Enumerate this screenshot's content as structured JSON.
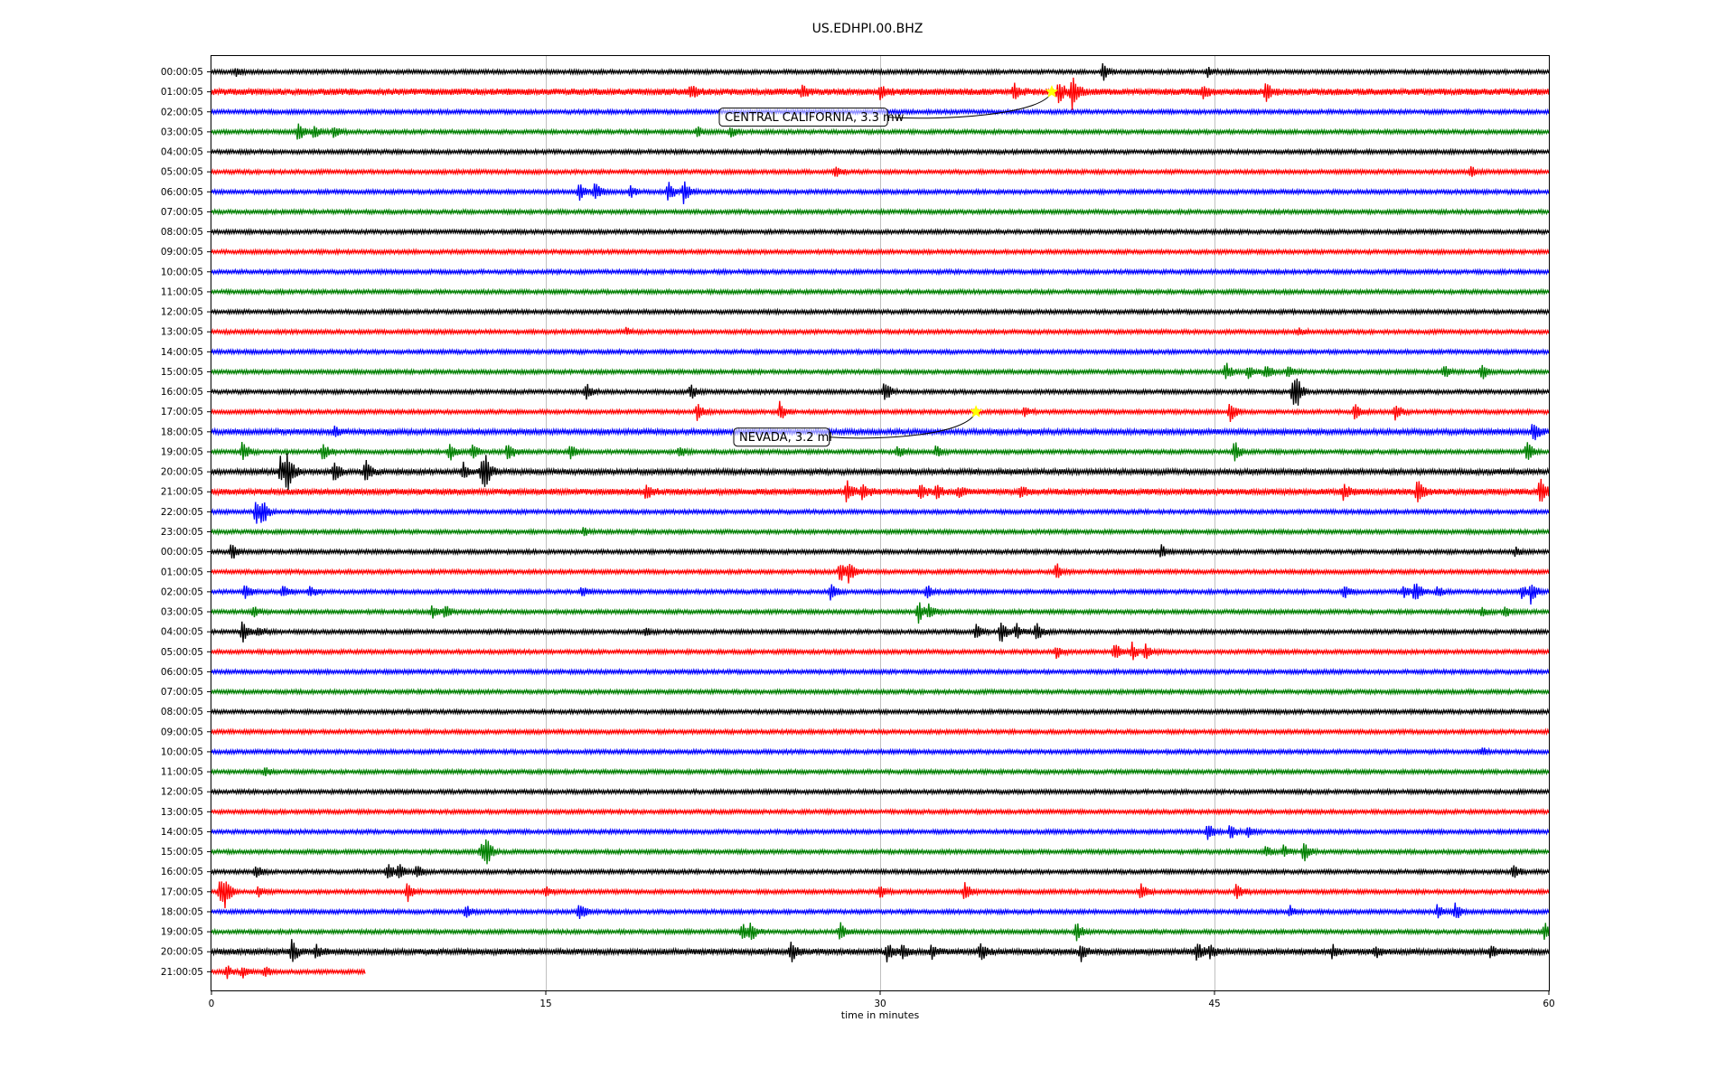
{
  "chart_data": {
    "type": "line",
    "title": "US.EDHPI.00.BHZ",
    "xlabel": "time in minutes",
    "ylabel": "",
    "xlim": [
      0,
      60
    ],
    "xticks": [
      "0",
      "15",
      "30",
      "45",
      "60"
    ],
    "xtick_values": [
      0,
      15,
      30,
      45,
      60
    ],
    "grid": "vertical",
    "colors": [
      "#000000",
      "#ff0000",
      "#0000ff",
      "#008000"
    ],
    "event_marker_color": "#ffff00",
    "traces": [
      {
        "label": "00:00:05",
        "end": 60,
        "events": [
          [
            1.1,
            0.6
          ],
          [
            40,
            1.4
          ],
          [
            44.7,
            0.8
          ]
        ]
      },
      {
        "label": "01:00:05",
        "end": 60,
        "noise": 1.6,
        "events": [
          [
            21.5,
            1.0
          ],
          [
            26.5,
            0.8
          ],
          [
            30,
            1.2
          ],
          [
            36,
            1.2
          ],
          [
            38,
            1.8
          ],
          [
            38.6,
            3.0
          ],
          [
            44.5,
            1.0
          ],
          [
            47.3,
            1.3
          ]
        ]
      },
      {
        "label": "02:00:05",
        "end": 60,
        "events": []
      },
      {
        "label": "03:00:05",
        "end": 60,
        "events": [
          [
            3.9,
            1.8
          ],
          [
            4.6,
            1.0
          ],
          [
            5.5,
            0.9
          ],
          [
            21.8,
            0.7
          ],
          [
            23.3,
            1.0
          ]
        ]
      },
      {
        "label": "04:00:05",
        "end": 60,
        "events": []
      },
      {
        "label": "05:00:05",
        "end": 60,
        "events": [
          [
            28,
            0.8
          ],
          [
            56.5,
            0.8
          ]
        ]
      },
      {
        "label": "06:00:05",
        "end": 60,
        "events": [
          [
            16.5,
            1.2
          ],
          [
            17.2,
            1.6
          ],
          [
            18.8,
            0.8
          ],
          [
            20.5,
            1.7
          ],
          [
            21.2,
            2.0
          ]
        ]
      },
      {
        "label": "07:00:05",
        "end": 60,
        "events": []
      },
      {
        "label": "08:00:05",
        "end": 60,
        "events": []
      },
      {
        "label": "09:00:05",
        "end": 60,
        "events": []
      },
      {
        "label": "10:00:05",
        "end": 60,
        "events": []
      },
      {
        "label": "11:00:05",
        "end": 60,
        "events": []
      },
      {
        "label": "12:00:05",
        "end": 60,
        "events": []
      },
      {
        "label": "13:00:05",
        "end": 60,
        "events": [
          [
            18.6,
            0.5
          ],
          [
            48.8,
            0.5
          ]
        ]
      },
      {
        "label": "14:00:05",
        "end": 60,
        "events": []
      },
      {
        "label": "15:00:05",
        "end": 60,
        "events": [
          [
            45.5,
            1.5
          ],
          [
            46.5,
            1.0
          ],
          [
            47.3,
            1.2
          ],
          [
            48.3,
            0.8
          ],
          [
            55.3,
            1.0
          ],
          [
            57,
            1.2
          ]
        ]
      },
      {
        "label": "16:00:05",
        "end": 60,
        "events": [
          [
            16.8,
            1.4
          ],
          [
            21.5,
            1.2
          ],
          [
            30.2,
            1.8
          ],
          [
            48.5,
            2.2
          ],
          [
            48.7,
            1.6
          ]
        ]
      },
      {
        "label": "17:00:05",
        "end": 60,
        "events": [
          [
            21.8,
            1.4
          ],
          [
            25.5,
            1.6
          ],
          [
            36.5,
            0.8
          ],
          [
            45.7,
            1.8
          ],
          [
            51.3,
            1.3
          ],
          [
            53.1,
            1.5
          ]
        ]
      },
      {
        "label": "18:00:05",
        "end": 60,
        "noise": 1.3,
        "events": [
          [
            5.5,
            0.8
          ],
          [
            59.3,
            1.7
          ]
        ]
      },
      {
        "label": "19:00:05",
        "end": 60,
        "events": [
          [
            1.4,
            1.8
          ],
          [
            5,
            1.4
          ],
          [
            10.7,
            1.6
          ],
          [
            11.7,
            1.4
          ],
          [
            13.3,
            1.8
          ],
          [
            16.1,
            1.2
          ],
          [
            21,
            0.9
          ],
          [
            30.8,
            0.9
          ],
          [
            32.5,
            0.9
          ],
          [
            45.9,
            1.8
          ],
          [
            59,
            1.8
          ]
        ]
      },
      {
        "label": "20:00:05",
        "end": 60,
        "noise": 1.3,
        "events": [
          [
            3.1,
            2.3
          ],
          [
            3.4,
            3.2
          ],
          [
            5.5,
            1.6
          ],
          [
            6.9,
            2.0
          ],
          [
            11.3,
            1.2
          ],
          [
            12.1,
            2.2
          ],
          [
            12.3,
            1.7
          ]
        ]
      },
      {
        "label": "21:00:05",
        "end": 60,
        "noise": 1.5,
        "events": [
          [
            19.5,
            1.0
          ],
          [
            28.5,
            1.8
          ],
          [
            29.2,
            1.4
          ],
          [
            31.8,
            1.0
          ],
          [
            32.5,
            1.1
          ],
          [
            33.5,
            0.8
          ],
          [
            36.3,
            1.0
          ],
          [
            50.8,
            1.2
          ],
          [
            54.1,
            2.0
          ],
          [
            59.6,
            2.0
          ]
        ]
      },
      {
        "label": "22:00:05",
        "end": 60,
        "events": [
          [
            2,
            2.5
          ],
          [
            2.3,
            1.6
          ]
        ]
      },
      {
        "label": "23:00:05",
        "end": 60,
        "events": [
          [
            16.7,
            0.6
          ]
        ]
      },
      {
        "label": "00:00:05",
        "end": 60,
        "events": [
          [
            0.9,
            1.4
          ],
          [
            42.6,
            1.0
          ],
          [
            58.5,
            0.6
          ]
        ]
      },
      {
        "label": "01:00:05",
        "end": 60,
        "events": [
          [
            28.2,
            1.6
          ],
          [
            28.6,
            1.6
          ],
          [
            37.9,
            1.4
          ]
        ]
      },
      {
        "label": "02:00:05",
        "end": 60,
        "events": [
          [
            1.5,
            1.4
          ],
          [
            3.2,
            1.0
          ],
          [
            4.4,
            1.0
          ],
          [
            16.6,
            0.8
          ],
          [
            27.8,
            1.4
          ],
          [
            32.1,
            1.1
          ],
          [
            50.8,
            1.0
          ],
          [
            53.5,
            0.9
          ],
          [
            54,
            2.0
          ],
          [
            55,
            0.9
          ],
          [
            58.8,
            1.0
          ],
          [
            59.2,
            1.8
          ]
        ]
      },
      {
        "label": "03:00:05",
        "end": 60,
        "events": [
          [
            1.9,
            0.8
          ],
          [
            9.9,
            1.0
          ],
          [
            10.5,
            1.2
          ],
          [
            31.7,
            1.8
          ],
          [
            32.2,
            1.3
          ],
          [
            57,
            0.8
          ],
          [
            58,
            0.9
          ]
        ]
      },
      {
        "label": "04:00:05",
        "end": 60,
        "events": [
          [
            1.4,
            1.8
          ],
          [
            2.1,
            0.9
          ],
          [
            19.5,
            0.6
          ],
          [
            34.3,
            1.2
          ],
          [
            35.4,
            2.0
          ],
          [
            36.1,
            1.4
          ],
          [
            37,
            1.7
          ]
        ]
      },
      {
        "label": "05:00:05",
        "end": 60,
        "events": [
          [
            37.9,
            1.0
          ],
          [
            40.5,
            1.6
          ],
          [
            41.3,
            1.3
          ],
          [
            41.9,
            1.4
          ]
        ]
      },
      {
        "label": "06:00:05",
        "end": 60,
        "events": []
      },
      {
        "label": "07:00:05",
        "end": 60,
        "events": []
      },
      {
        "label": "08:00:05",
        "end": 60,
        "events": []
      },
      {
        "label": "09:00:05",
        "end": 60,
        "events": []
      },
      {
        "label": "10:00:05",
        "end": 60,
        "events": [
          [
            57,
            0.6
          ]
        ]
      },
      {
        "label": "11:00:05",
        "end": 60,
        "events": [
          [
            2.4,
            0.6
          ]
        ]
      },
      {
        "label": "12:00:05",
        "end": 60,
        "events": []
      },
      {
        "label": "13:00:05",
        "end": 60,
        "events": []
      },
      {
        "label": "14:00:05",
        "end": 60,
        "events": [
          [
            44.7,
            1.4
          ],
          [
            45.7,
            1.2
          ],
          [
            46.5,
            0.8
          ]
        ]
      },
      {
        "label": "15:00:05",
        "end": 60,
        "events": [
          [
            12.1,
            1.2
          ],
          [
            12.3,
            2.4
          ],
          [
            47.3,
            0.9
          ],
          [
            48.1,
            0.9
          ],
          [
            49,
            1.6
          ]
        ]
      },
      {
        "label": "16:00:05",
        "end": 60,
        "events": [
          [
            2,
            1.0
          ],
          [
            7.9,
            1.4
          ],
          [
            8.4,
            1.2
          ],
          [
            9.2,
            1.2
          ],
          [
            58.4,
            1.2
          ]
        ]
      },
      {
        "label": "17:00:05",
        "end": 60,
        "events": [
          [
            0.4,
            2.2
          ],
          [
            0.6,
            1.8
          ],
          [
            2.1,
            0.8
          ],
          [
            8.8,
            1.6
          ],
          [
            15,
            0.7
          ],
          [
            30,
            1.0
          ],
          [
            33.8,
            1.6
          ],
          [
            41.7,
            1.3
          ],
          [
            46,
            1.5
          ]
        ]
      },
      {
        "label": "18:00:05",
        "end": 60,
        "events": [
          [
            11.4,
            1.0
          ],
          [
            16.5,
            1.4
          ],
          [
            48.4,
            0.8
          ],
          [
            55,
            1.1
          ],
          [
            55.8,
            1.5
          ]
        ]
      },
      {
        "label": "19:00:05",
        "end": 60,
        "events": [
          [
            23.8,
            1.6
          ],
          [
            24.2,
            1.4
          ],
          [
            28.2,
            1.4
          ],
          [
            38.8,
            1.5
          ],
          [
            59.8,
            1.4
          ]
        ]
      },
      {
        "label": "20:00:05",
        "end": 60,
        "noise": 1.4,
        "events": [
          [
            3.6,
            2.0
          ],
          [
            4.7,
            0.9
          ],
          [
            26,
            1.8
          ],
          [
            30.3,
            1.4
          ],
          [
            31,
            1.0
          ],
          [
            32.3,
            1.0
          ],
          [
            34.5,
            1.6
          ],
          [
            39,
            1.4
          ],
          [
            44.2,
            1.6
          ],
          [
            44.8,
            1.1
          ],
          [
            50.3,
            1.0
          ],
          [
            52.2,
            0.9
          ],
          [
            57.4,
            0.9
          ]
        ]
      },
      {
        "label": "21:00:05",
        "end": 6.9,
        "events": [
          [
            0.7,
            0.9
          ],
          [
            1.4,
            1.0
          ],
          [
            2.4,
            0.9
          ]
        ]
      }
    ],
    "annotations": [
      {
        "text": "CENTRAL CALIFORNIA, 3.3 mw",
        "trace": 1,
        "time": 37.7
      },
      {
        "text": "NEVADA, 3.2 ml",
        "trace": 17,
        "time": 34.3
      }
    ]
  }
}
